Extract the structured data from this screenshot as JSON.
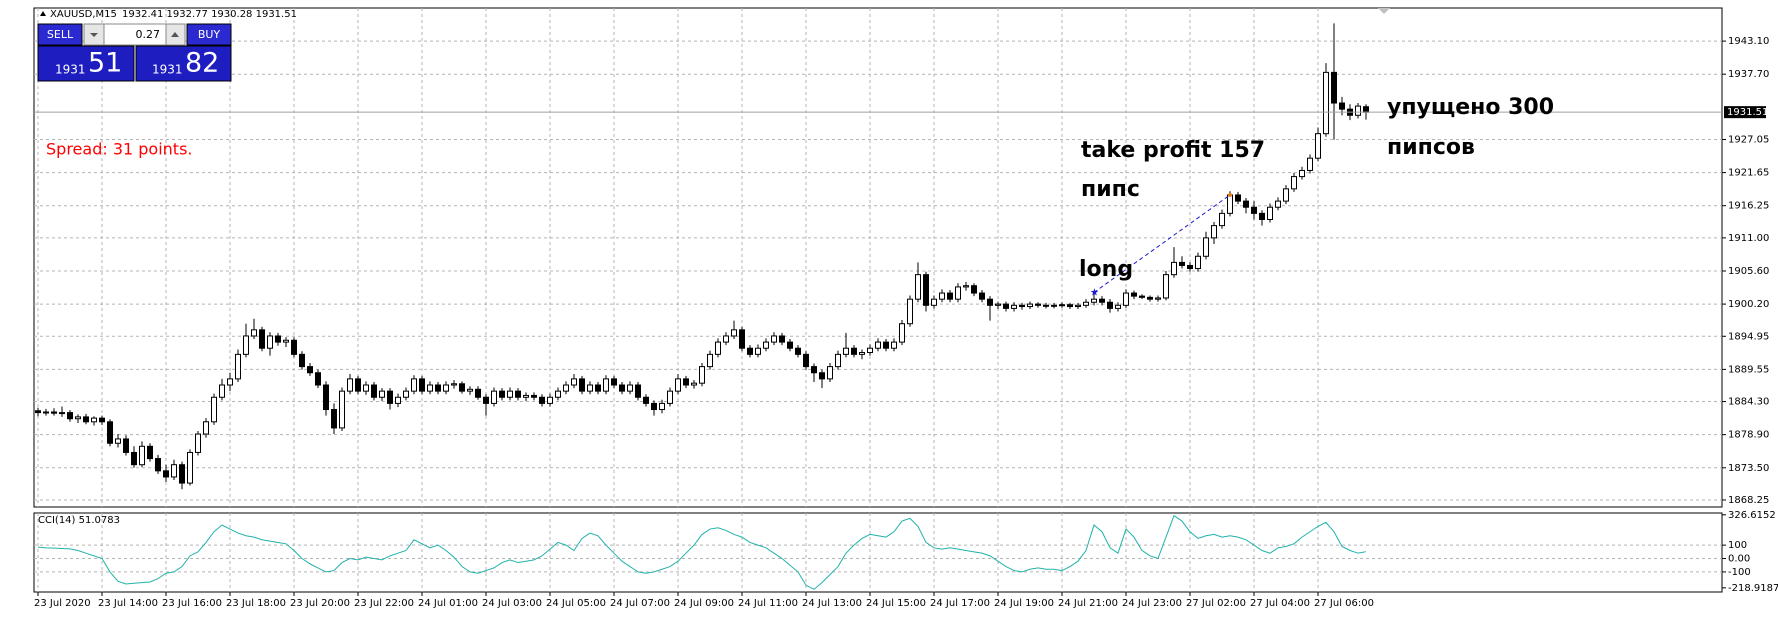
{
  "header": {
    "symbol": "XAUUSD,M15",
    "quote": "1932.41 1932.77 1930.28 1931.51"
  },
  "trade_panel": {
    "sell": "SELL",
    "buy": "BUY",
    "lot": "0.27",
    "sell_big": "1931",
    "sell_small": "51",
    "buy_big": "1931",
    "buy_small": "82"
  },
  "spread": "Spread: 31 points.",
  "annotations": [
    "take profit 157",
    "пипс",
    "long",
    "упущено 300",
    "пипсов"
  ],
  "chart_data": {
    "type": "candlestick",
    "up_color": "#ffffff",
    "down_color": "#000000",
    "grid": true,
    "ylim": [
      1867.1,
      1948.5
    ],
    "yticks": [
      {
        "value": 1943.1,
        "label": "1943.10"
      },
      {
        "value": 1937.7,
        "label": "1937.70"
      },
      {
        "value": 1927.05,
        "label": "1927.05"
      },
      {
        "value": 1921.65,
        "label": "1921.65"
      },
      {
        "value": 1916.25,
        "label": "1916.25"
      },
      {
        "value": 1911,
        "label": "1911.00"
      },
      {
        "value": 1905.6,
        "label": "1905.60"
      },
      {
        "value": 1900.2,
        "label": "1900.20"
      },
      {
        "value": 1894.95,
        "label": "1894.95"
      },
      {
        "value": 1889.55,
        "label": "1889.55"
      },
      {
        "value": 1884.3,
        "label": "1884.30"
      },
      {
        "value": 1878.9,
        "label": "1878.90"
      },
      {
        "value": 1873.5,
        "label": "1873.50"
      },
      {
        "value": 1868.25,
        "label": "1868.25"
      }
    ],
    "last_price": 1931.51,
    "trade": {
      "open_price": 1902.1,
      "take_profit": 1918.0
    },
    "categories": [
      "23 Jul 2020",
      null,
      null,
      null,
      null,
      null,
      null,
      null,
      "23 Jul 14:00",
      null,
      null,
      null,
      null,
      null,
      null,
      null,
      "23 Jul 16:00",
      null,
      null,
      null,
      null,
      null,
      null,
      null,
      "23 Jul 18:00",
      null,
      null,
      null,
      null,
      null,
      null,
      null,
      "23 Jul 20:00",
      null,
      null,
      null,
      null,
      null,
      null,
      null,
      "23 Jul 22:00",
      null,
      null,
      null,
      null,
      null,
      null,
      null,
      "24 Jul 01:00",
      null,
      null,
      null,
      null,
      null,
      null,
      null,
      "24 Jul 03:00",
      null,
      null,
      null,
      null,
      null,
      null,
      null,
      "24 Jul 05:00",
      null,
      null,
      null,
      null,
      null,
      null,
      null,
      "24 Jul 07:00",
      null,
      null,
      null,
      null,
      null,
      null,
      null,
      "24 Jul 09:00",
      null,
      null,
      null,
      null,
      null,
      null,
      null,
      "24 Jul 11:00",
      null,
      null,
      null,
      null,
      null,
      null,
      null,
      "24 Jul 13:00",
      null,
      null,
      null,
      null,
      null,
      null,
      null,
      "24 Jul 15:00",
      null,
      null,
      null,
      null,
      null,
      null,
      null,
      "24 Jul 17:00",
      null,
      null,
      null,
      null,
      null,
      null,
      null,
      "24 Jul 19:00",
      null,
      null,
      null,
      null,
      null,
      null,
      null,
      "24 Jul 21:00",
      null,
      null,
      null,
      null,
      null,
      null,
      null,
      "24 Jul 23:00",
      null,
      null,
      null,
      null,
      null,
      null,
      null,
      "27 Jul 02:00",
      null,
      null,
      null,
      null,
      null,
      null,
      null,
      "27 Jul 04:00",
      null,
      null,
      null,
      null,
      null,
      null,
      null,
      "27 Jul 06:00",
      null,
      null,
      null,
      null,
      null,
      null
    ],
    "ohlc": [
      [
        1882.8,
        1883.3,
        1881.9,
        1882.5
      ],
      [
        1882.5,
        1883.1,
        1882.0,
        1882.6
      ],
      [
        1882.6,
        1883.2,
        1882.0,
        1882.4
      ],
      [
        1882.4,
        1883.5,
        1881.8,
        1882.5
      ],
      [
        1882.5,
        1882.9,
        1881.0,
        1881.5
      ],
      [
        1881.5,
        1882.2,
        1880.8,
        1881.8
      ],
      [
        1881.8,
        1882.3,
        1880.6,
        1881.0
      ],
      [
        1881.0,
        1881.9,
        1880.4,
        1881.6
      ],
      [
        1881.6,
        1882.0,
        1880.5,
        1881.0
      ],
      [
        1881.0,
        1881.4,
        1877.0,
        1877.5
      ],
      [
        1877.5,
        1879.0,
        1876.8,
        1878.2
      ],
      [
        1878.2,
        1878.8,
        1875.5,
        1876.0
      ],
      [
        1876.0,
        1877.0,
        1873.5,
        1874.0
      ],
      [
        1874.0,
        1877.8,
        1873.6,
        1877.0
      ],
      [
        1877.0,
        1877.5,
        1874.5,
        1875.0
      ],
      [
        1875.0,
        1875.6,
        1872.5,
        1873.0
      ],
      [
        1873.0,
        1874.0,
        1871.2,
        1872.0
      ],
      [
        1872.0,
        1874.8,
        1871.5,
        1874.0
      ],
      [
        1874.0,
        1874.5,
        1870.0,
        1871.0
      ],
      [
        1871.0,
        1876.5,
        1870.6,
        1876.0
      ],
      [
        1876.0,
        1879.5,
        1875.5,
        1879.0
      ],
      [
        1879.0,
        1881.6,
        1878.4,
        1881.0
      ],
      [
        1881.0,
        1885.6,
        1880.5,
        1885.0
      ],
      [
        1885.0,
        1888.0,
        1884.5,
        1887.0
      ],
      [
        1887.0,
        1889.0,
        1886.0,
        1888.0
      ],
      [
        1888.0,
        1892.8,
        1887.5,
        1892.0
      ],
      [
        1892.0,
        1897.0,
        1891.5,
        1895.0
      ],
      [
        1895.0,
        1897.8,
        1894.5,
        1896.0
      ],
      [
        1896.0,
        1896.5,
        1892.5,
        1893.0
      ],
      [
        1893.0,
        1895.6,
        1891.8,
        1895.0
      ],
      [
        1895.0,
        1895.5,
        1893.4,
        1894.0
      ],
      [
        1894.0,
        1894.8,
        1893.2,
        1894.3
      ],
      [
        1894.3,
        1894.8,
        1891.5,
        1892.0
      ],
      [
        1892.0,
        1892.5,
        1889.5,
        1890.0
      ],
      [
        1890.0,
        1890.6,
        1888.5,
        1889.0
      ],
      [
        1889.0,
        1889.5,
        1886.5,
        1887.0
      ],
      [
        1887.0,
        1887.6,
        1882.0,
        1883.0
      ],
      [
        1883.0,
        1884.0,
        1879.0,
        1880.0
      ],
      [
        1880.0,
        1886.6,
        1879.5,
        1886.0
      ],
      [
        1886.0,
        1888.8,
        1885.5,
        1888.0
      ],
      [
        1888.0,
        1888.5,
        1885.5,
        1886.0
      ],
      [
        1886.0,
        1887.6,
        1885.4,
        1887.0
      ],
      [
        1887.0,
        1887.5,
        1884.5,
        1885.0
      ],
      [
        1885.0,
        1886.5,
        1884.4,
        1886.0
      ],
      [
        1886.0,
        1886.5,
        1883.0,
        1884.0
      ],
      [
        1884.0,
        1885.6,
        1883.4,
        1885.0
      ],
      [
        1885.0,
        1886.6,
        1884.5,
        1886.0
      ],
      [
        1886.0,
        1888.6,
        1885.5,
        1888.0
      ],
      [
        1888.0,
        1888.5,
        1885.5,
        1886.0
      ],
      [
        1886.0,
        1887.6,
        1885.5,
        1887.0
      ],
      [
        1887.0,
        1887.5,
        1885.5,
        1886.0
      ],
      [
        1886.0,
        1887.6,
        1885.5,
        1887.0
      ],
      [
        1887.0,
        1887.8,
        1886.4,
        1887.2
      ],
      [
        1887.2,
        1887.6,
        1885.6,
        1886.0
      ],
      [
        1886.0,
        1886.8,
        1885.4,
        1886.3
      ],
      [
        1886.3,
        1886.8,
        1884.6,
        1885.0
      ],
      [
        1885.0,
        1885.5,
        1882.0,
        1884.0
      ],
      [
        1884.0,
        1886.6,
        1883.5,
        1886.0
      ],
      [
        1886.0,
        1886.5,
        1884.5,
        1885.0
      ],
      [
        1885.0,
        1886.6,
        1884.5,
        1886.0
      ],
      [
        1886.0,
        1886.5,
        1884.5,
        1885.0
      ],
      [
        1885.0,
        1885.8,
        1884.4,
        1885.3
      ],
      [
        1885.3,
        1885.8,
        1884.5,
        1885.0
      ],
      [
        1885.0,
        1885.5,
        1883.5,
        1884.0
      ],
      [
        1884.0,
        1885.6,
        1883.5,
        1885.0
      ],
      [
        1885.0,
        1886.6,
        1884.5,
        1886.0
      ],
      [
        1886.0,
        1887.6,
        1885.5,
        1887.0
      ],
      [
        1887.0,
        1888.8,
        1886.5,
        1888.0
      ],
      [
        1888.0,
        1888.5,
        1885.5,
        1886.0
      ],
      [
        1886.0,
        1887.6,
        1885.5,
        1887.0
      ],
      [
        1887.0,
        1887.5,
        1885.5,
        1886.0
      ],
      [
        1886.0,
        1888.6,
        1885.5,
        1888.0
      ],
      [
        1888.0,
        1888.5,
        1886.5,
        1887.0
      ],
      [
        1887.0,
        1887.5,
        1885.5,
        1886.0
      ],
      [
        1886.0,
        1887.6,
        1885.5,
        1887.0
      ],
      [
        1887.0,
        1887.5,
        1884.5,
        1885.0
      ],
      [
        1885.0,
        1885.5,
        1883.5,
        1884.0
      ],
      [
        1884.0,
        1884.5,
        1882.0,
        1883.0
      ],
      [
        1883.0,
        1884.6,
        1882.4,
        1884.0
      ],
      [
        1884.0,
        1886.6,
        1883.5,
        1886.0
      ],
      [
        1886.0,
        1888.8,
        1885.5,
        1888.0
      ],
      [
        1888.0,
        1888.5,
        1886.5,
        1887.0
      ],
      [
        1887.0,
        1887.8,
        1886.4,
        1887.3
      ],
      [
        1887.3,
        1890.6,
        1886.8,
        1890.0
      ],
      [
        1890.0,
        1892.6,
        1889.5,
        1892.0
      ],
      [
        1892.0,
        1894.6,
        1891.5,
        1894.0
      ],
      [
        1894.0,
        1895.6,
        1893.5,
        1895.0
      ],
      [
        1895.0,
        1897.5,
        1894.5,
        1896.0
      ],
      [
        1896.0,
        1896.5,
        1892.5,
        1893.0
      ],
      [
        1893.0,
        1893.5,
        1891.5,
        1892.0
      ],
      [
        1892.0,
        1893.6,
        1891.5,
        1893.0
      ],
      [
        1893.0,
        1894.6,
        1892.5,
        1894.0
      ],
      [
        1894.0,
        1895.6,
        1893.5,
        1895.0
      ],
      [
        1895.0,
        1895.5,
        1893.5,
        1894.0
      ],
      [
        1894.0,
        1894.5,
        1892.5,
        1893.0
      ],
      [
        1893.0,
        1893.5,
        1891.5,
        1892.0
      ],
      [
        1892.0,
        1892.5,
        1889.5,
        1890.0
      ],
      [
        1890.0,
        1890.5,
        1887.5,
        1889.0
      ],
      [
        1889.0,
        1889.5,
        1886.5,
        1888.0
      ],
      [
        1888.0,
        1890.6,
        1887.5,
        1890.0
      ],
      [
        1890.0,
        1892.6,
        1889.5,
        1892.0
      ],
      [
        1892.0,
        1895.5,
        1891.5,
        1893.0
      ],
      [
        1893.0,
        1893.5,
        1891.5,
        1892.0
      ],
      [
        1892.0,
        1892.8,
        1891.2,
        1892.3
      ],
      [
        1892.3,
        1893.6,
        1891.8,
        1893.0
      ],
      [
        1893.0,
        1894.6,
        1892.5,
        1894.0
      ],
      [
        1894.0,
        1894.5,
        1892.5,
        1893.0
      ],
      [
        1893.0,
        1894.6,
        1892.5,
        1894.0
      ],
      [
        1894.0,
        1897.6,
        1893.5,
        1897.0
      ],
      [
        1897.0,
        1901.6,
        1896.5,
        1901.0
      ],
      [
        1901.0,
        1907.0,
        1900.5,
        1905.0
      ],
      [
        1905.0,
        1905.5,
        1899.0,
        1900.0
      ],
      [
        1900.0,
        1901.6,
        1899.5,
        1901.0
      ],
      [
        1901.0,
        1902.6,
        1900.5,
        1902.0
      ],
      [
        1902.0,
        1902.5,
        1900.5,
        1901.0
      ],
      [
        1901.0,
        1903.6,
        1900.5,
        1903.0
      ],
      [
        1903.0,
        1903.8,
        1902.4,
        1903.2
      ],
      [
        1903.2,
        1903.6,
        1901.5,
        1902.0
      ],
      [
        1902.0,
        1902.5,
        1900.5,
        1901.0
      ],
      [
        1901.0,
        1901.5,
        1897.5,
        1900.0
      ],
      [
        1900.0,
        1900.6,
        1899.4,
        1900.2
      ],
      [
        1900.2,
        1900.6,
        1899.0,
        1899.5
      ],
      [
        1899.5,
        1900.5,
        1899.0,
        1900.0
      ],
      [
        1900.0,
        1900.4,
        1899.3,
        1899.8
      ],
      [
        1899.8,
        1900.6,
        1899.4,
        1900.2
      ],
      [
        1900.2,
        1900.5,
        1899.6,
        1900.0
      ],
      [
        1900.0,
        1900.4,
        1899.5,
        1899.9
      ],
      [
        1899.9,
        1900.4,
        1899.5,
        1900.0
      ],
      [
        1900.0,
        1900.5,
        1899.6,
        1900.1
      ],
      [
        1900.1,
        1900.4,
        1899.4,
        1899.8
      ],
      [
        1899.8,
        1900.4,
        1899.4,
        1900.0
      ],
      [
        1900.0,
        1901.0,
        1899.6,
        1900.5
      ],
      [
        1900.5,
        1902.0,
        1900.0,
        1901.0
      ],
      [
        1901.0,
        1901.5,
        1900.0,
        1900.5
      ],
      [
        1900.5,
        1901.0,
        1898.8,
        1899.5
      ],
      [
        1899.5,
        1900.5,
        1899.0,
        1900.0
      ],
      [
        1900.0,
        1902.6,
        1899.6,
        1902.0
      ],
      [
        1902.0,
        1902.4,
        1901.0,
        1901.5
      ],
      [
        1901.5,
        1901.8,
        1901.0,
        1901.3
      ],
      [
        1901.3,
        1901.6,
        1900.6,
        1901.0
      ],
      [
        1901.0,
        1901.6,
        1900.6,
        1901.2
      ],
      [
        1901.2,
        1905.6,
        1900.8,
        1905.0
      ],
      [
        1905.0,
        1909.5,
        1904.5,
        1907.0
      ],
      [
        1907.0,
        1908.0,
        1906.0,
        1906.5
      ],
      [
        1906.5,
        1907.0,
        1905.5,
        1906.0
      ],
      [
        1906.0,
        1908.6,
        1905.5,
        1908.0
      ],
      [
        1908.0,
        1912.0,
        1907.5,
        1911.0
      ],
      [
        1911.0,
        1913.6,
        1910.0,
        1913.0
      ],
      [
        1913.0,
        1915.6,
        1912.5,
        1915.0
      ],
      [
        1915.0,
        1918.6,
        1914.5,
        1918.0
      ],
      [
        1918.0,
        1918.5,
        1916.5,
        1917.0
      ],
      [
        1917.0,
        1917.5,
        1915.0,
        1916.0
      ],
      [
        1916.0,
        1917.0,
        1914.0,
        1915.0
      ],
      [
        1915.0,
        1915.5,
        1913.0,
        1914.0
      ],
      [
        1914.0,
        1916.6,
        1913.5,
        1916.0
      ],
      [
        1916.0,
        1917.6,
        1915.5,
        1917.0
      ],
      [
        1917.0,
        1919.6,
        1916.5,
        1919.0
      ],
      [
        1919.0,
        1921.6,
        1918.5,
        1921.0
      ],
      [
        1921.0,
        1922.6,
        1920.5,
        1922.0
      ],
      [
        1922.0,
        1924.6,
        1921.5,
        1924.0
      ],
      [
        1924.0,
        1929.0,
        1923.5,
        1928.0
      ],
      [
        1928.0,
        1939.5,
        1927.5,
        1938.0
      ],
      [
        1938.0,
        1946.0,
        1927.0,
        1933.0
      ],
      [
        1933.0,
        1934.0,
        1931.0,
        1932.0
      ],
      [
        1932.0,
        1932.8,
        1930.2,
        1931.0
      ],
      [
        1931.0,
        1933.0,
        1930.5,
        1932.5
      ],
      [
        1932.4,
        1932.8,
        1930.3,
        1931.5
      ]
    ],
    "indicator": {
      "type": "line",
      "title": "CCI(14) 51.0783",
      "color": "#20b2aa",
      "ylim": [
        -250,
        340
      ],
      "yticks": [
        326.6152,
        100,
        {
          "value": 0,
          "label": "0.00"
        },
        -100,
        -218.9187
      ],
      "values": [
        85,
        80,
        78,
        75,
        72,
        60,
        40,
        20,
        0,
        -100,
        -170,
        -190,
        -185,
        -180,
        -175,
        -150,
        -110,
        -100,
        -60,
        20,
        50,
        120,
        200,
        250,
        220,
        190,
        170,
        160,
        140,
        130,
        120,
        110,
        60,
        0,
        -40,
        -70,
        -100,
        -90,
        -30,
        0,
        -10,
        10,
        0,
        -10,
        20,
        40,
        60,
        140,
        110,
        80,
        100,
        60,
        10,
        -60,
        -100,
        -110,
        -90,
        -70,
        -30,
        -10,
        -30,
        -20,
        -10,
        20,
        70,
        120,
        100,
        60,
        150,
        190,
        170,
        100,
        40,
        -20,
        -60,
        -100,
        -110,
        -100,
        -80,
        -60,
        -20,
        40,
        100,
        180,
        220,
        230,
        210,
        180,
        160,
        120,
        100,
        80,
        40,
        0,
        -50,
        -100,
        -200,
        -230,
        -180,
        -120,
        -60,
        40,
        100,
        150,
        180,
        170,
        160,
        200,
        280,
        300,
        240,
        120,
        80,
        70,
        80,
        70,
        60,
        50,
        40,
        20,
        -20,
        -60,
        -90,
        -100,
        -80,
        -70,
        -80,
        -80,
        -90,
        -60,
        -20,
        60,
        250,
        200,
        80,
        40,
        220,
        160,
        60,
        20,
        0,
        160,
        320,
        280,
        200,
        150,
        170,
        180,
        160,
        170,
        160,
        140,
        100,
        60,
        40,
        80,
        90,
        110,
        160,
        200,
        240,
        270,
        200,
        90,
        60,
        40,
        51.0783
      ]
    }
  }
}
